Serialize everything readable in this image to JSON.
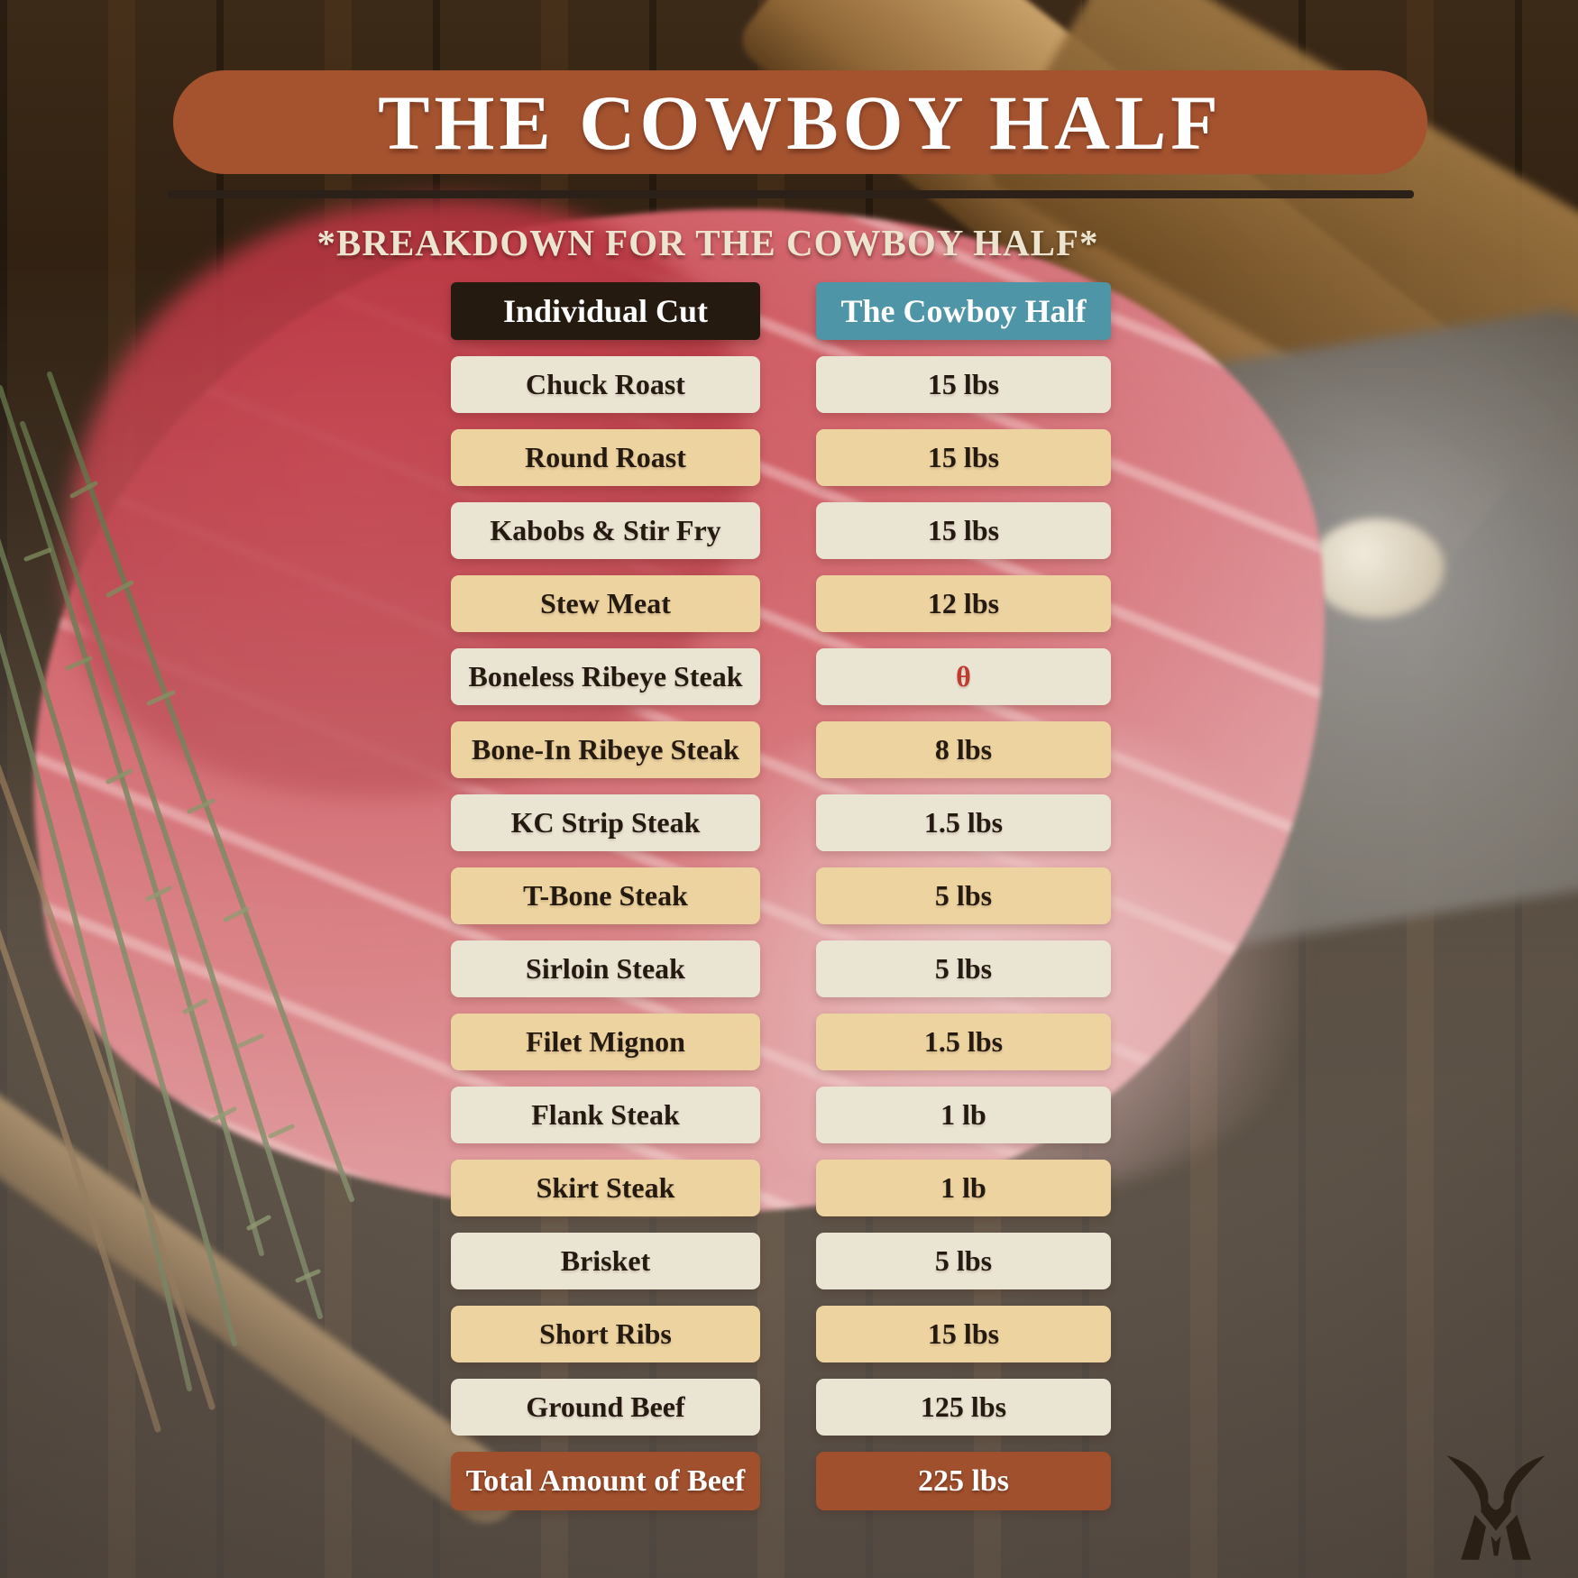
{
  "title": "THE COWBOY HALF",
  "subtitle": "*BREAKDOWN FOR THE COWBOY HALF*",
  "chart_data": {
    "type": "table",
    "title": "THE COWBOY HALF",
    "subtitle": "*BREAKDOWN FOR THE COWBOY HALF*",
    "columns": [
      "Individual Cut",
      "The Cowboy Half"
    ],
    "rows": [
      {
        "cut": "Chuck Roast",
        "amount": "15 lbs"
      },
      {
        "cut": "Round Roast",
        "amount": "15 lbs"
      },
      {
        "cut": "Kabobs & Stir Fry",
        "amount": "15 lbs"
      },
      {
        "cut": "Stew Meat",
        "amount": "12 lbs"
      },
      {
        "cut": "Boneless Ribeye Steak",
        "amount": "θ",
        "amount_color": "#C03A31"
      },
      {
        "cut": "Bone-In Ribeye Steak",
        "amount": "8 lbs"
      },
      {
        "cut": "KC Strip Steak",
        "amount": "1.5 lbs"
      },
      {
        "cut": "T-Bone Steak",
        "amount": "5 lbs"
      },
      {
        "cut": "Sirloin Steak",
        "amount": "5 lbs"
      },
      {
        "cut": "Filet Mignon",
        "amount": "1.5 lbs"
      },
      {
        "cut": "Flank Steak",
        "amount": "1 lb"
      },
      {
        "cut": "Skirt Steak",
        "amount": "1 lb"
      },
      {
        "cut": "Brisket",
        "amount": "5 lbs"
      },
      {
        "cut": "Short Ribs",
        "amount": "15 lbs"
      },
      {
        "cut": "Ground Beef",
        "amount": "125 lbs"
      }
    ],
    "total": {
      "label": "Total Amount of Beef",
      "amount": "225 lbs"
    }
  },
  "table": {
    "columns": [
      {
        "label": "Individual Cut"
      },
      {
        "label": "The Cowboy Half"
      }
    ],
    "total": {
      "label": "Total Amount of Beef",
      "amount": "225 lbs"
    }
  },
  "logo": "bull-brand-icon",
  "colors": {
    "rust": "#A5532F",
    "rust-dark": "#A0502C",
    "ink": "#241A10",
    "teal": "#4E95A7",
    "cream": "#EAE4D3",
    "tan": "#EDD3A0",
    "paper": "#EDE4D0",
    "red": "#C03A31"
  }
}
